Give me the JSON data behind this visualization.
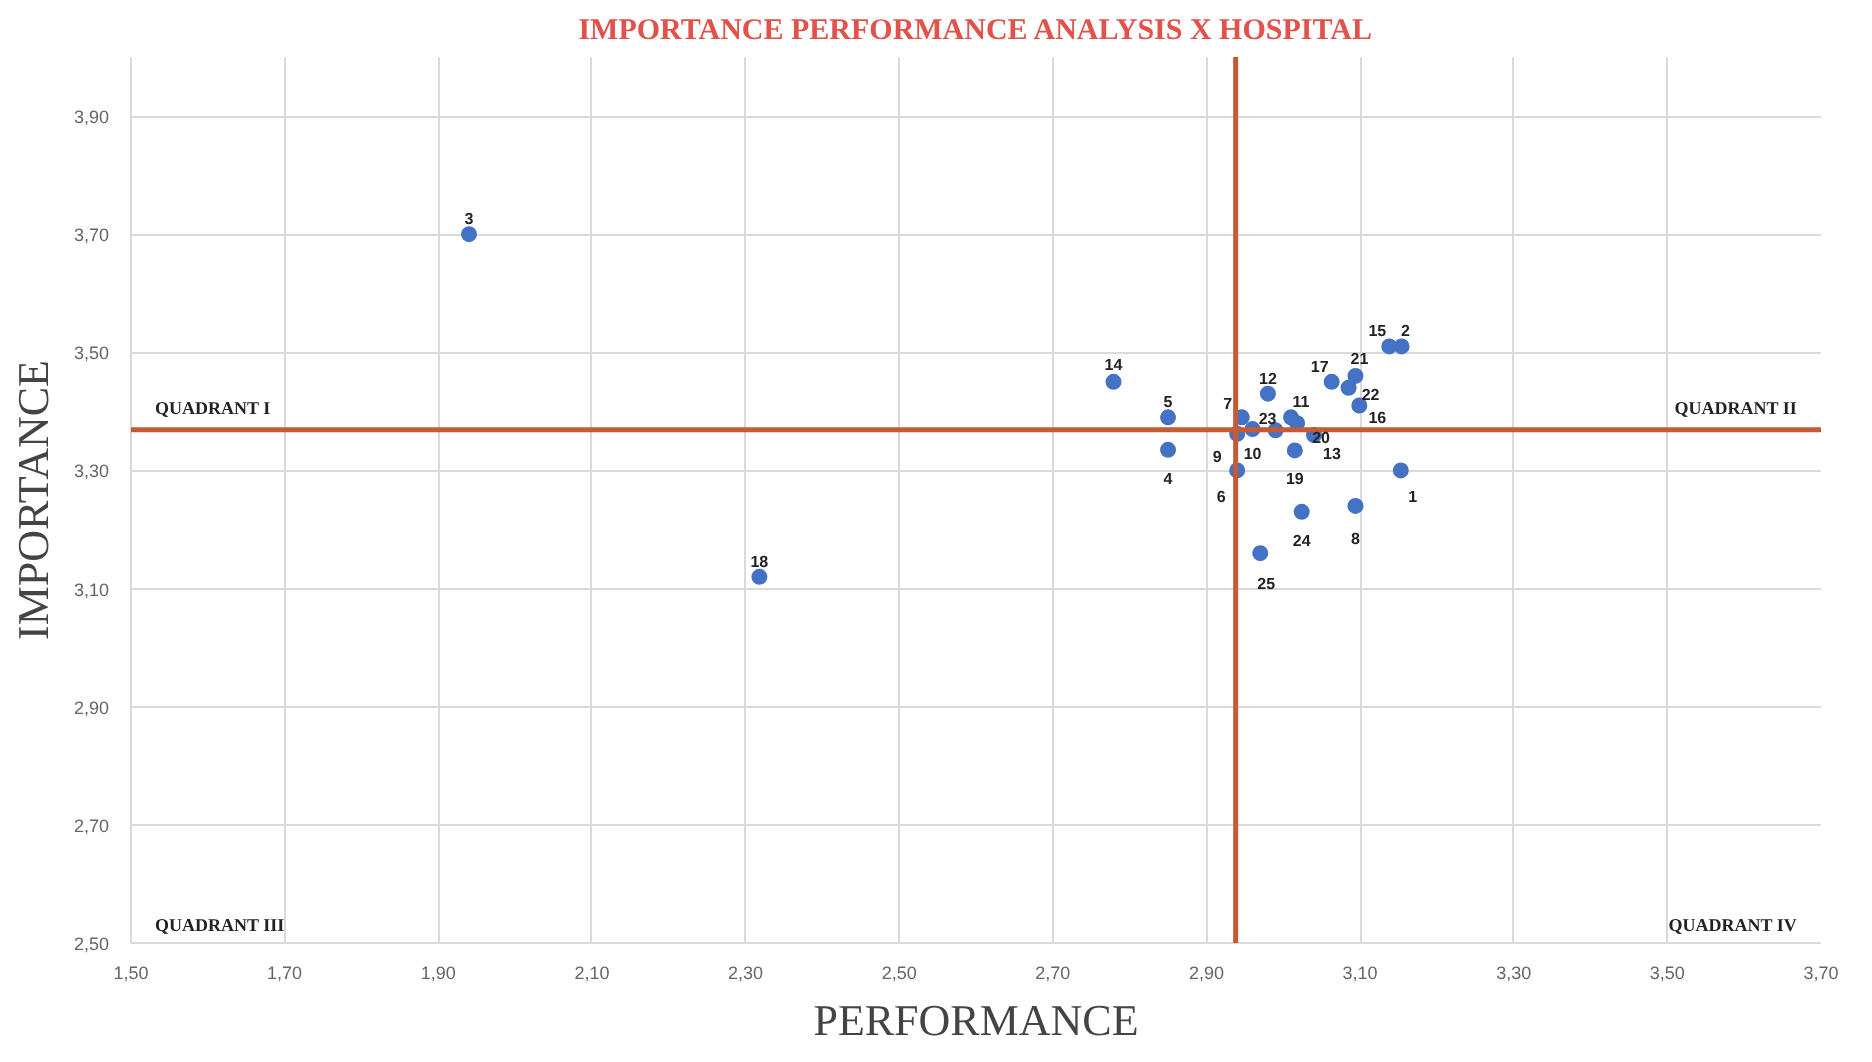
{
  "chart_data": {
    "type": "scatter",
    "title": "IMPORTANCE PERFORMANCE ANALYSIS X HOSPITAL",
    "xlabel": "PERFORMANCE",
    "ylabel": "IMPORTANCE",
    "x": [
      3.153,
      3.154,
      1.94,
      2.85,
      2.85,
      2.94,
      2.946,
      3.094,
      2.94,
      2.96,
      3.01,
      2.98,
      3.04,
      2.779,
      3.138,
      3.099,
      3.063,
      2.318,
      3.015,
      3.018,
      3.094,
      3.085,
      2.99,
      3.024,
      2.97
    ],
    "series": [
      {
        "color": "#4472c4",
        "values": [
          3.3,
          3.51,
          3.7,
          3.335,
          3.39,
          3.3,
          3.39,
          3.24,
          3.362,
          3.37,
          3.39,
          3.43,
          3.36,
          3.45,
          3.51,
          3.41,
          3.45,
          3.12,
          3.334,
          3.38,
          3.46,
          3.44,
          3.368,
          3.23,
          3.16
        ]
      }
    ],
    "marker": "circle",
    "xlim": [
      1.5,
      3.7
    ],
    "xticks": [
      {
        "value": 1.5,
        "label": "1,50"
      },
      {
        "value": 1.7,
        "label": "1,70"
      },
      {
        "value": 1.9,
        "label": "1,90"
      },
      {
        "value": 2.1,
        "label": "2,10"
      },
      {
        "value": 2.3,
        "label": "2,30"
      },
      {
        "value": 2.5,
        "label": "2,50"
      },
      {
        "value": 2.7,
        "label": "2,70"
      },
      {
        "value": 2.9,
        "label": "2,90"
      },
      {
        "value": 3.1,
        "label": "3,10"
      },
      {
        "value": 3.3,
        "label": "3,30"
      },
      {
        "value": 3.5,
        "label": "3,50"
      },
      {
        "value": 3.7,
        "label": "3,70"
      }
    ],
    "ylim": [
      2.5,
      4.0
    ],
    "yticks": [
      {
        "value": 2.5,
        "label": "2,50"
      },
      {
        "value": 2.7,
        "label": "2,70"
      },
      {
        "value": 2.9,
        "label": "2,90"
      },
      {
        "value": 3.1,
        "label": "3,10"
      },
      {
        "value": 3.3,
        "label": "3,30"
      },
      {
        "value": 3.5,
        "label": "3,50"
      },
      {
        "value": 3.7,
        "label": "3,70"
      },
      {
        "value": 3.9,
        "label": "3,90"
      }
    ],
    "grid": true,
    "ref_lines": [
      {
        "axis": "x",
        "value": 2.938,
        "color": "#c55a35"
      },
      {
        "axis": "y",
        "value": 3.369,
        "color": "#c55a35"
      }
    ],
    "annotations": [
      "QUADRANT I",
      "QUADRANT II",
      "QUADRANT III",
      "QUADRANT IV",
      {
        "text": "1",
        "x": 3.153,
        "y": 3.3
      },
      {
        "text": "2",
        "x": 3.154,
        "y": 3.51
      },
      {
        "text": "3",
        "x": 1.94,
        "y": 3.7
      },
      {
        "text": "4",
        "x": 2.85,
        "y": 3.335
      },
      {
        "text": "5",
        "x": 2.85,
        "y": 3.39
      },
      {
        "text": "6",
        "x": 2.94,
        "y": 3.3
      },
      {
        "text": "7",
        "x": 2.946,
        "y": 3.39
      },
      {
        "text": "8",
        "x": 3.094,
        "y": 3.24
      },
      {
        "text": "9",
        "x": 2.94,
        "y": 3.362
      },
      {
        "text": "10",
        "x": 2.96,
        "y": 3.37
      },
      {
        "text": "11",
        "x": 3.01,
        "y": 3.39
      },
      {
        "text": "12",
        "x": 2.98,
        "y": 3.43
      },
      {
        "text": "13",
        "x": 3.04,
        "y": 3.36
      },
      {
        "text": "14",
        "x": 2.779,
        "y": 3.45
      },
      {
        "text": "15",
        "x": 3.138,
        "y": 3.51
      },
      {
        "text": "16",
        "x": 3.099,
        "y": 3.41
      },
      {
        "text": "17",
        "x": 3.063,
        "y": 3.45
      },
      {
        "text": "18",
        "x": 2.318,
        "y": 3.12
      },
      {
        "text": "19",
        "x": 3.015,
        "y": 3.334
      },
      {
        "text": "20",
        "x": 3.018,
        "y": 3.38
      },
      {
        "text": "21",
        "x": 3.094,
        "y": 3.46
      },
      {
        "text": "22",
        "x": 3.085,
        "y": 3.44
      },
      {
        "text": "23",
        "x": 2.99,
        "y": 3.368
      },
      {
        "text": "24",
        "x": 3.024,
        "y": 3.23
      },
      {
        "text": "25",
        "x": 2.97,
        "y": 3.16
      }
    ]
  }
}
